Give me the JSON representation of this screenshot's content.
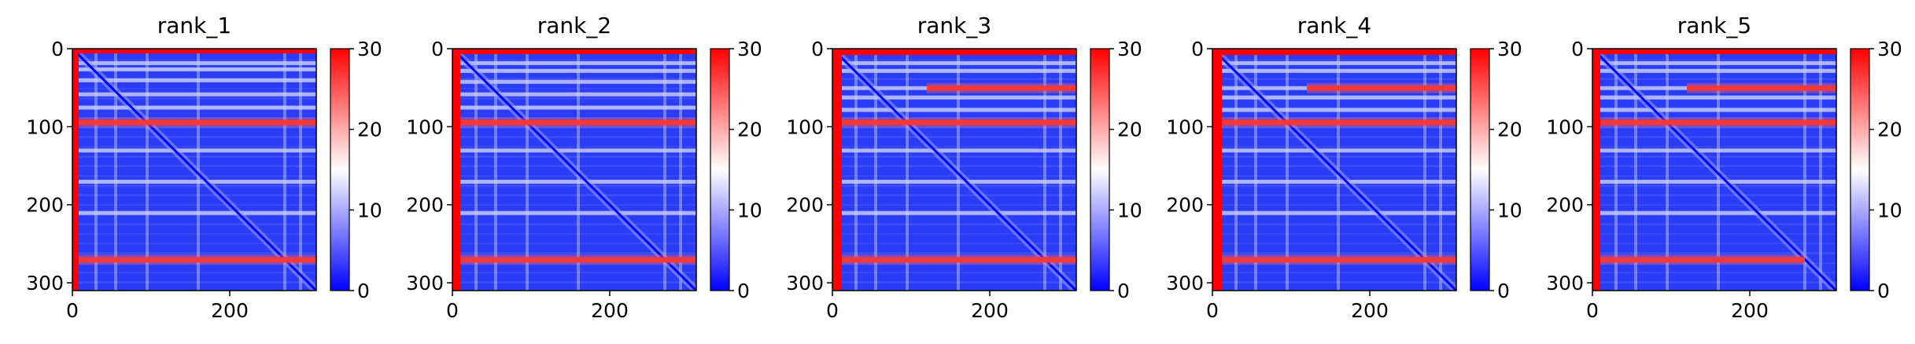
{
  "chart_data": [
    {
      "type": "heatmap",
      "title": "rank_1",
      "xlim": [
        0,
        310
      ],
      "ylim": [
        310,
        0
      ],
      "x_ticks": [
        0,
        200
      ],
      "y_ticks": [
        0,
        100,
        200,
        300
      ],
      "colorbar": {
        "range": [
          0,
          30
        ],
        "ticks": [
          0,
          10,
          20,
          30
        ],
        "colors": [
          "#0000ff",
          "#ffffff",
          "#ff0000"
        ]
      },
      "bands": {
        "h_red": [
          {
            "y": 94,
            "x0": 8,
            "x1": 310
          },
          {
            "y": 270,
            "x0": 8,
            "x1": 310
          }
        ],
        "top_red_rows": [
          0,
          4
        ],
        "left_red_cols": [
          0,
          6
        ],
        "h_white": [
          18,
          26,
          40,
          58,
          75,
          130,
          170,
          210
        ],
        "v_white": [
          30,
          55,
          95,
          160,
          270,
          290
        ]
      }
    },
    {
      "type": "heatmap",
      "title": "rank_2",
      "xlim": [
        0,
        310
      ],
      "ylim": [
        310,
        0
      ],
      "x_ticks": [
        0,
        200
      ],
      "y_ticks": [
        0,
        100,
        200,
        300
      ],
      "colorbar": {
        "range": [
          0,
          30
        ],
        "ticks": [
          0,
          10,
          20,
          30
        ],
        "colors": [
          "#0000ff",
          "#ffffff",
          "#ff0000"
        ]
      },
      "bands": {
        "h_red": [
          {
            "y": 94,
            "x0": 8,
            "x1": 310
          },
          {
            "y": 270,
            "x0": 8,
            "x1": 310
          }
        ],
        "top_red_rows": [
          0,
          5
        ],
        "left_red_cols": [
          0,
          8
        ],
        "h_white": [
          18,
          28,
          42,
          58,
          75,
          130,
          170,
          210
        ],
        "v_white": [
          30,
          55,
          95,
          160,
          270,
          290
        ]
      }
    },
    {
      "type": "heatmap",
      "title": "rank_3",
      "xlim": [
        0,
        310
      ],
      "ylim": [
        310,
        0
      ],
      "x_ticks": [
        0,
        200
      ],
      "y_ticks": [
        0,
        100,
        200,
        300
      ],
      "colorbar": {
        "range": [
          0,
          30
        ],
        "ticks": [
          0,
          10,
          20,
          30
        ],
        "colors": [
          "#0000ff",
          "#ffffff",
          "#ff0000"
        ]
      },
      "bands": {
        "h_red": [
          {
            "y": 94,
            "x0": 8,
            "x1": 310
          },
          {
            "y": 270,
            "x0": 8,
            "x1": 310
          },
          {
            "y": 50,
            "x0": 120,
            "x1": 310
          }
        ],
        "top_red_rows": [
          0,
          6
        ],
        "left_red_cols": [
          0,
          10
        ],
        "h_white": [
          18,
          28,
          50,
          62,
          78,
          130,
          170,
          210
        ],
        "v_white": [
          30,
          55,
          95,
          160,
          270,
          290
        ]
      }
    },
    {
      "type": "heatmap",
      "title": "rank_4",
      "xlim": [
        0,
        310
      ],
      "ylim": [
        310,
        0
      ],
      "x_ticks": [
        0,
        200
      ],
      "y_ticks": [
        0,
        100,
        200,
        300
      ],
      "colorbar": {
        "range": [
          0,
          30
        ],
        "ticks": [
          0,
          10,
          20,
          30
        ],
        "colors": [
          "#0000ff",
          "#ffffff",
          "#ff0000"
        ]
      },
      "bands": {
        "h_red": [
          {
            "y": 94,
            "x0": 8,
            "x1": 310
          },
          {
            "y": 270,
            "x0": 8,
            "x1": 310
          },
          {
            "y": 50,
            "x0": 120,
            "x1": 310
          }
        ],
        "top_red_rows": [
          0,
          6
        ],
        "left_red_cols": [
          0,
          10
        ],
        "h_white": [
          18,
          28,
          50,
          62,
          78,
          130,
          170,
          210
        ],
        "v_white": [
          30,
          55,
          95,
          160,
          270,
          290
        ]
      }
    },
    {
      "type": "heatmap",
      "title": "rank_5",
      "xlim": [
        0,
        310
      ],
      "ylim": [
        310,
        0
      ],
      "x_ticks": [
        0,
        200
      ],
      "y_ticks": [
        0,
        100,
        200,
        300
      ],
      "colorbar": {
        "range": [
          0,
          30
        ],
        "ticks": [
          0,
          10,
          20,
          30
        ],
        "colors": [
          "#0000ff",
          "#ffffff",
          "#ff0000"
        ]
      },
      "bands": {
        "h_red": [
          {
            "y": 94,
            "x0": 8,
            "x1": 310
          },
          {
            "y": 270,
            "x0": 8,
            "x1": 270
          },
          {
            "y": 50,
            "x0": 120,
            "x1": 310
          }
        ],
        "top_red_rows": [
          0,
          5
        ],
        "left_red_cols": [
          0,
          8
        ],
        "h_white": [
          18,
          28,
          50,
          62,
          78,
          130,
          170,
          210
        ],
        "v_white": [
          30,
          55,
          95,
          160,
          270,
          290
        ]
      }
    }
  ]
}
